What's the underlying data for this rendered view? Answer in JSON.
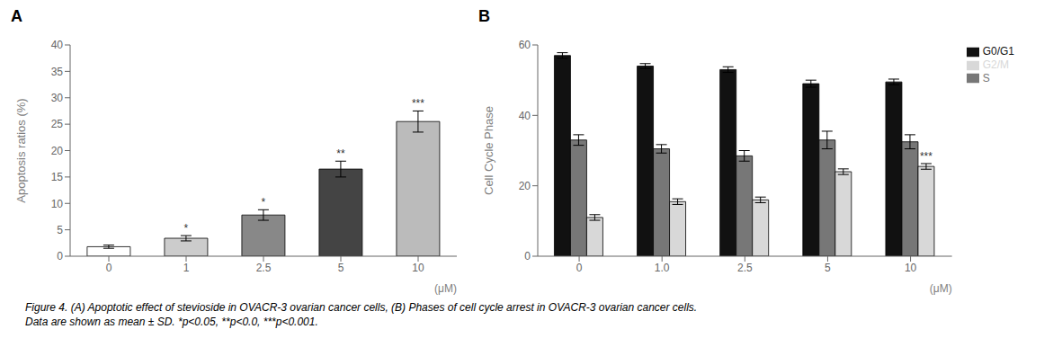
{
  "chart_data": [
    {
      "type": "bar",
      "title": "A",
      "xlabel": "(μM)",
      "ylabel": "Apoptosis ratios (%)",
      "categories": [
        "0",
        "1",
        "2.5",
        "5",
        "10"
      ],
      "values": [
        1.8,
        3.4,
        7.8,
        16.5,
        25.5
      ],
      "errors": [
        0.3,
        0.5,
        1.0,
        1.5,
        2.0
      ],
      "colors": [
        "white",
        "#cccccc",
        "#888888",
        "#444444",
        "#bbbbbb"
      ],
      "ylim": [
        0,
        40
      ],
      "yticks": [
        0,
        5,
        10,
        15,
        20,
        25,
        30,
        35,
        40
      ],
      "grid": false,
      "annotations": [
        {
          "category": "1",
          "text": "*"
        },
        {
          "category": "2.5",
          "text": "*"
        },
        {
          "category": "5",
          "text": "**"
        },
        {
          "category": "10",
          "text": "***"
        }
      ]
    },
    {
      "type": "bar",
      "title": "B",
      "xlabel": "(μM)",
      "ylabel": "Cell Cycle Phase",
      "categories": [
        "0",
        "1.0",
        "2.5",
        "5",
        "10"
      ],
      "series": [
        {
          "name": "G0/G1",
          "color": "#111111",
          "values": [
            57.0,
            54.0,
            53.0,
            49.0,
            49.5
          ],
          "errors": [
            0.8,
            0.7,
            0.8,
            1.0,
            0.8
          ]
        },
        {
          "name": "S",
          "color": "#777777",
          "values": [
            33.0,
            30.5,
            28.5,
            33.0,
            32.5
          ],
          "errors": [
            1.5,
            1.2,
            1.5,
            2.5,
            2.0
          ]
        },
        {
          "name": "G2/M",
          "color": "#d8d8d8",
          "values": [
            11.0,
            15.5,
            16.0,
            24.0,
            25.5
          ],
          "errors": [
            0.8,
            0.8,
            0.8,
            0.8,
            0.8
          ]
        }
      ],
      "ylim": [
        0,
        60
      ],
      "yticks": [
        0,
        20,
        40,
        60
      ],
      "grid": false,
      "legend": "right",
      "annotations": [
        {
          "series": "G2/M",
          "category": "10",
          "text": "***"
        }
      ]
    }
  ],
  "caption": [
    "Figure 4. (A) Apoptotic effect of stevioside in OVACR-3 ovarian cancer cells, (B) Phases of cell cycle arrest in OVACR-3 ovarian cancer cells.",
    "Data are shown as mean ± SD. *p<0.05, **p<0.0, ***p<0.001."
  ]
}
